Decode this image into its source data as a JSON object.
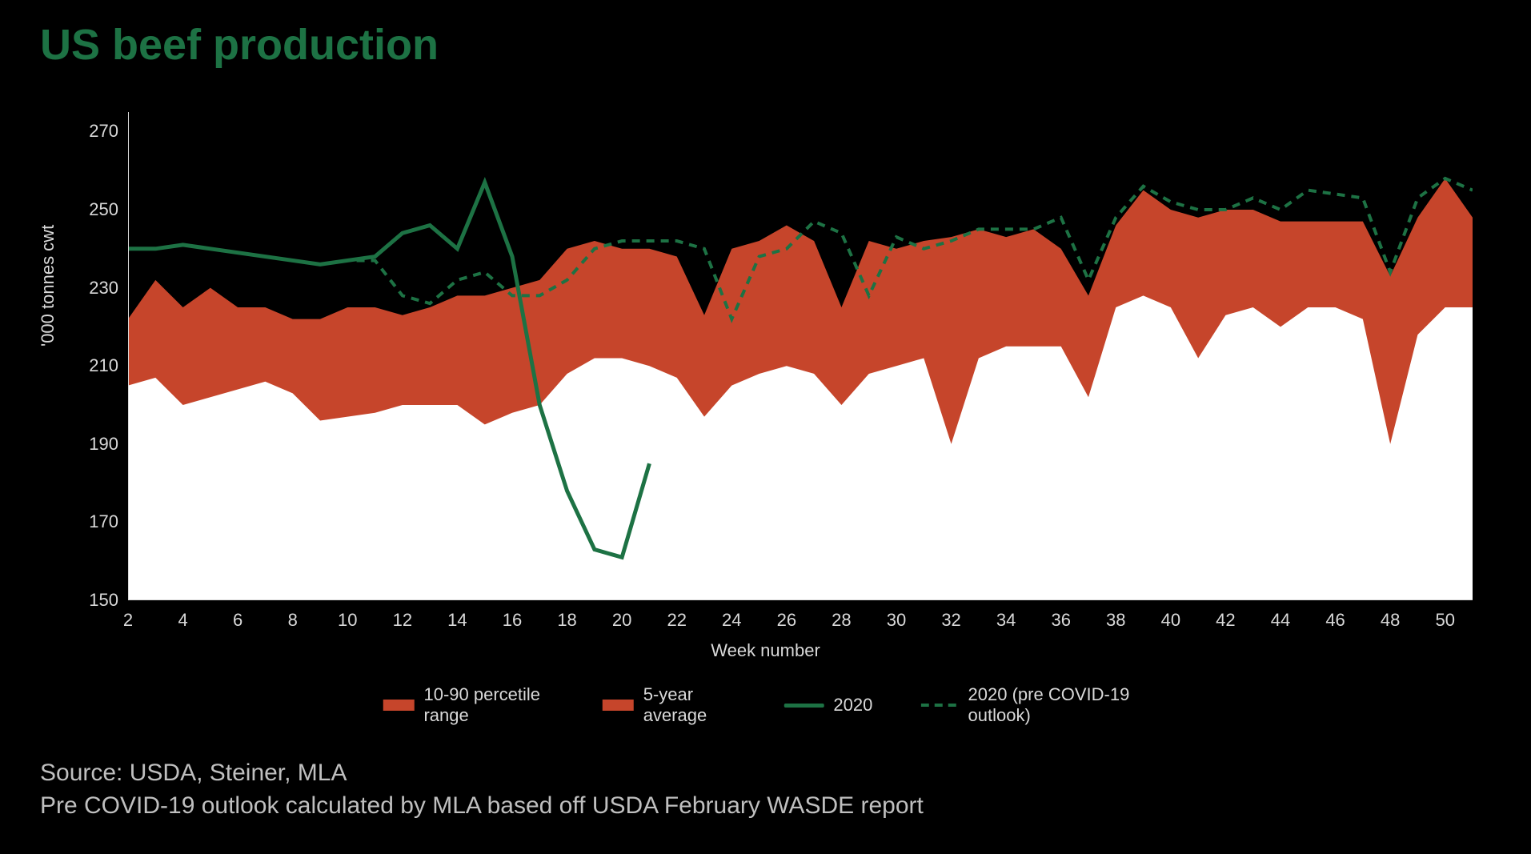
{
  "title": "US beef production",
  "y_axis_label": "'000 tonnes cwt",
  "x_axis_label": "Week number",
  "source_line1": "Source: USDA, Steiner, MLA",
  "source_line2": "Pre COVID-19 outlook calculated by MLA based off USDA February WASDE report",
  "legend": {
    "range": "10-90 percetile range",
    "avg": "5-year average",
    "y2020": "2020",
    "outlook": "2020 (pre COVID-19 outlook)"
  },
  "colors": {
    "background": "#000000",
    "title": "#1d7244",
    "axis_text": "#d9d9d9",
    "source_text": "#bfbfbf",
    "band_fill": "#c6452b",
    "line_2020": "#1d7244",
    "line_outlook": "#1d7244",
    "plot_fill": "#ffffff"
  },
  "chart": {
    "type": "area-band-with-lines",
    "ylim": [
      150,
      275
    ],
    "xlim": [
      2,
      51
    ],
    "y_ticks": [
      150,
      170,
      190,
      210,
      230,
      250,
      270
    ],
    "x_ticks": [
      2,
      4,
      6,
      8,
      10,
      12,
      14,
      16,
      18,
      20,
      22,
      24,
      26,
      28,
      30,
      32,
      34,
      36,
      38,
      40,
      42,
      44,
      46,
      48,
      50
    ],
    "plot_background": "#000000",
    "band_upper_color": "#c6452b",
    "band_lower_color": "#ffffff",
    "line_2020_width": 5,
    "line_outlook_width": 4,
    "line_outlook_dash": "10 8",
    "weeks": [
      2,
      3,
      4,
      5,
      6,
      7,
      8,
      9,
      10,
      11,
      12,
      13,
      14,
      15,
      16,
      17,
      18,
      19,
      20,
      21,
      22,
      23,
      24,
      25,
      26,
      27,
      28,
      29,
      30,
      31,
      32,
      33,
      34,
      35,
      36,
      37,
      38,
      39,
      40,
      41,
      42,
      43,
      44,
      45,
      46,
      47,
      48,
      49,
      50,
      51
    ],
    "band_upper": [
      222,
      232,
      225,
      230,
      225,
      225,
      222,
      222,
      225,
      225,
      223,
      225,
      228,
      228,
      230,
      232,
      240,
      242,
      240,
      240,
      238,
      223,
      240,
      242,
      246,
      242,
      225,
      242,
      240,
      242,
      243,
      245,
      243,
      245,
      240,
      228,
      246,
      255,
      250,
      248,
      250,
      250,
      247,
      247,
      247,
      247,
      233,
      248,
      258,
      248
    ],
    "band_lower": [
      205,
      207,
      200,
      202,
      204,
      206,
      203,
      196,
      197,
      198,
      200,
      200,
      200,
      195,
      198,
      200,
      208,
      212,
      212,
      210,
      207,
      197,
      205,
      208,
      210,
      208,
      200,
      208,
      210,
      212,
      190,
      212,
      215,
      215,
      215,
      202,
      225,
      228,
      225,
      212,
      223,
      225,
      220,
      225,
      225,
      222,
      190,
      218,
      225,
      225
    ],
    "line_2020": [
      240,
      240,
      241,
      240,
      239,
      238,
      237,
      236,
      237,
      238,
      244,
      246,
      240,
      257,
      238,
      200,
      178,
      163,
      161,
      185
    ],
    "line_outlook": [
      240,
      240,
      241,
      240,
      239,
      238,
      237,
      236,
      237,
      237,
      228,
      226,
      232,
      234,
      228,
      228,
      232,
      240,
      242,
      242,
      242,
      240,
      222,
      238,
      240,
      247,
      244,
      228,
      243,
      240,
      242,
      245,
      245,
      245,
      248,
      232,
      248,
      256,
      252,
      250,
      250,
      253,
      250,
      255,
      254,
      253,
      234,
      253,
      258,
      255
    ]
  }
}
